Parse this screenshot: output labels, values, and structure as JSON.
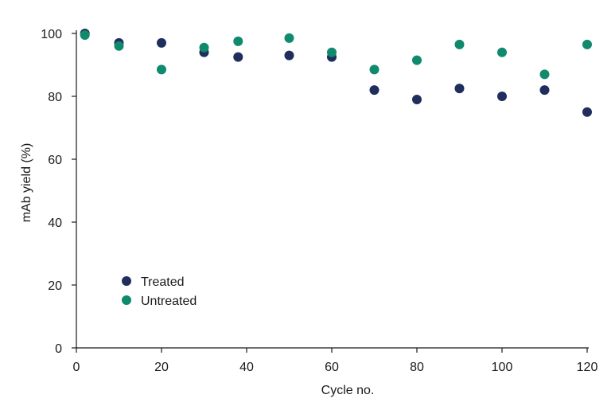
{
  "chart_data": {
    "type": "scatter",
    "xlabel": "Cycle no.",
    "ylabel": "mAb yield (%)",
    "xlim": [
      0,
      120
    ],
    "ylim": [
      0,
      100
    ],
    "xticks": [
      0,
      20,
      40,
      60,
      80,
      100,
      120
    ],
    "yticks": [
      0,
      20,
      40,
      60,
      80,
      100
    ],
    "grid": false,
    "legend_position": "lower-left",
    "series": [
      {
        "name": "Treated",
        "color": "#1f2e5c",
        "points": [
          {
            "x": 2,
            "y": 100
          },
          {
            "x": 10,
            "y": 97
          },
          {
            "x": 20,
            "y": 97
          },
          {
            "x": 30,
            "y": 94
          },
          {
            "x": 38,
            "y": 92.5
          },
          {
            "x": 50,
            "y": 93
          },
          {
            "x": 60,
            "y": 92.5
          },
          {
            "x": 70,
            "y": 82
          },
          {
            "x": 80,
            "y": 79
          },
          {
            "x": 90,
            "y": 82.5
          },
          {
            "x": 100,
            "y": 80
          },
          {
            "x": 110,
            "y": 82
          },
          {
            "x": 120,
            "y": 75
          }
        ]
      },
      {
        "name": "Untreated",
        "color": "#0f8a6c",
        "points": [
          {
            "x": 2,
            "y": 99.5
          },
          {
            "x": 10,
            "y": 96
          },
          {
            "x": 20,
            "y": 88.5
          },
          {
            "x": 30,
            "y": 95.5
          },
          {
            "x": 38,
            "y": 97.5
          },
          {
            "x": 50,
            "y": 98.5
          },
          {
            "x": 60,
            "y": 94
          },
          {
            "x": 70,
            "y": 88.5
          },
          {
            "x": 80,
            "y": 91.5
          },
          {
            "x": 90,
            "y": 96.5
          },
          {
            "x": 100,
            "y": 94
          },
          {
            "x": 110,
            "y": 87
          },
          {
            "x": 120,
            "y": 96.5
          }
        ]
      }
    ]
  }
}
